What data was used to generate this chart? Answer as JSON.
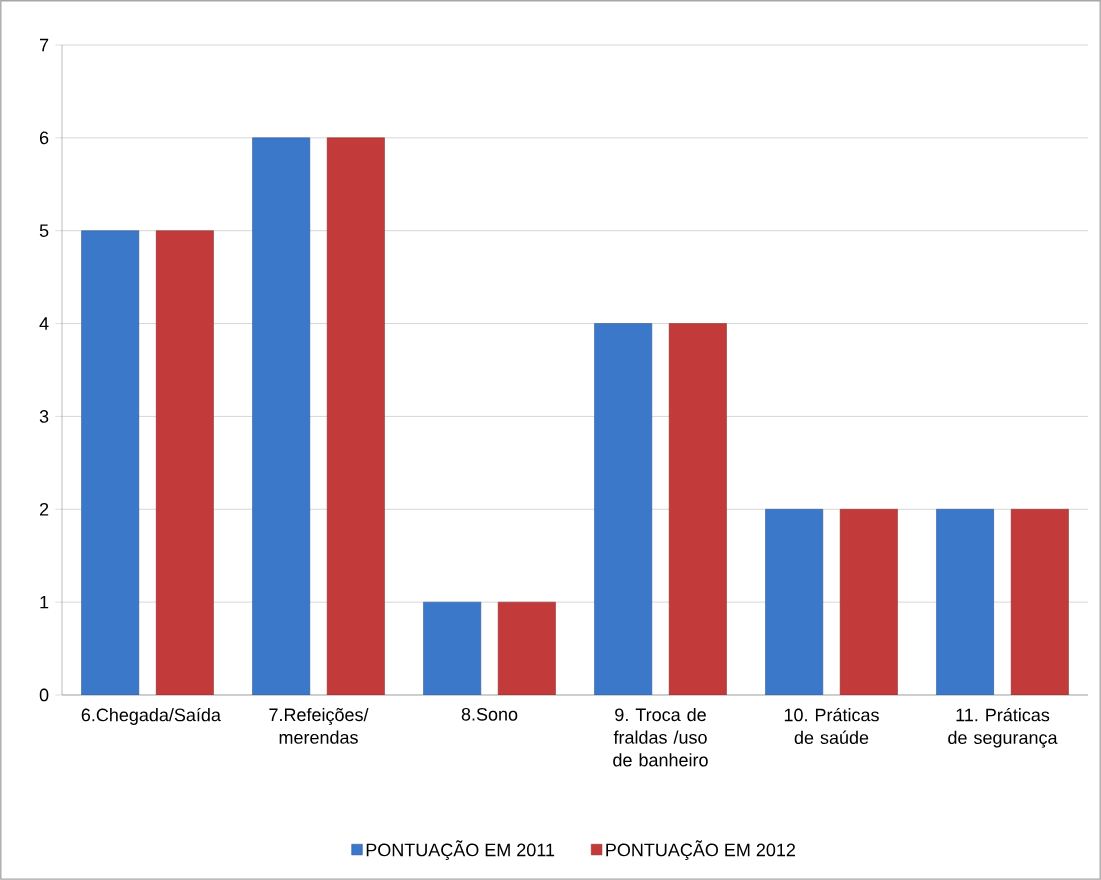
{
  "chart_data": {
    "type": "bar",
    "categories": [
      "6.Chegada/Saída",
      "7.Refeições/ merendas",
      "8.Sono",
      "9. Troca de fraldas /uso de banheiro",
      "10. Práticas de saúde",
      "11. Práticas de segurança"
    ],
    "series": [
      {
        "name": "PONTUAÇÃO EM 2011",
        "color": "#3b78c9",
        "values": [
          5,
          6,
          1,
          4,
          2,
          2
        ]
      },
      {
        "name": "PONTUAÇÃO EM 2012",
        "color": "#c23a3a",
        "values": [
          5,
          6,
          1,
          4,
          2,
          2
        ]
      }
    ],
    "ylim": [
      0,
      7
    ],
    "yticks": [
      0,
      1,
      2,
      3,
      4,
      5,
      6,
      7
    ],
    "grid": "y",
    "legend": "bottom"
  }
}
